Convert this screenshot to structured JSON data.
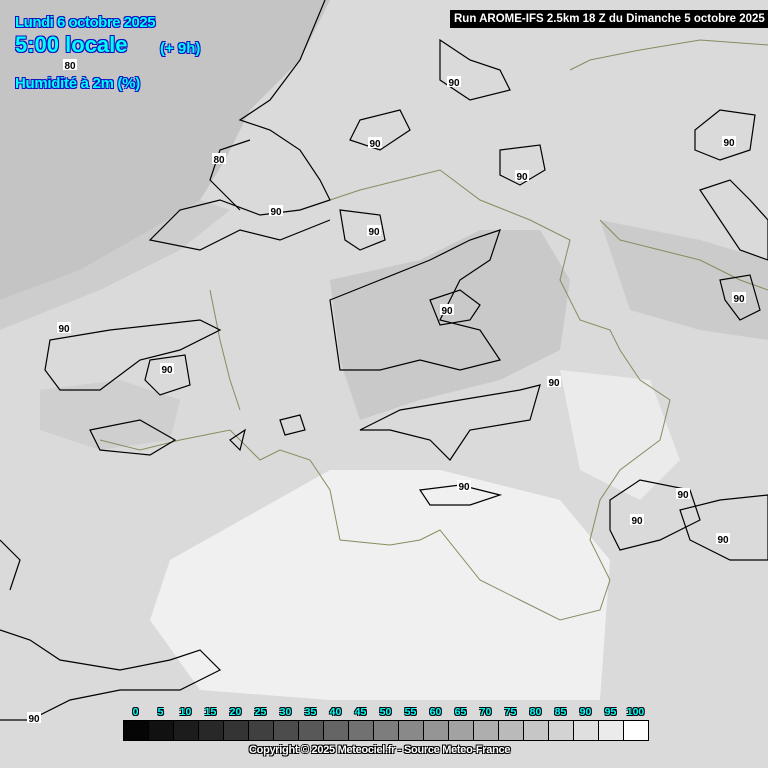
{
  "header": {
    "date": "Lundi 6 octobre 2025",
    "time": "5:00 locale",
    "offset": "(+ 9h)",
    "parameter": "Humidité à 2m (%)"
  },
  "run_info": "Run AROME-IFS 2.5km 18 Z du Dimanche 5 octobre 2025",
  "legend": {
    "ticks": [
      "0",
      "5",
      "10",
      "15",
      "20",
      "25",
      "30",
      "35",
      "40",
      "45",
      "50",
      "55",
      "60",
      "65",
      "70",
      "75",
      "80",
      "85",
      "90",
      "95",
      "100"
    ],
    "colors": [
      "#050505",
      "#111111",
      "#1c1c1c",
      "#282828",
      "#343434",
      "#404040",
      "#4c4c4c",
      "#585858",
      "#656565",
      "#717171",
      "#7d7d7d",
      "#898989",
      "#959595",
      "#a2a2a2",
      "#aeaeae",
      "#bababa",
      "#c6c6c6",
      "#d3d3d3",
      "#dfdfdf",
      "#ebebeb",
      "#ffffff"
    ]
  },
  "contour_labels": [
    "80",
    "80",
    "90",
    "90",
    "90",
    "90",
    "90",
    "90",
    "90",
    "90",
    "90",
    "90",
    "90",
    "90",
    "90",
    "90",
    "90",
    "90"
  ],
  "copyright": "Copyright © 2025 Meteociel.fr - Source Meteo-France",
  "colors": {
    "header_text": "#00ffff",
    "header_outline": "#1010c0",
    "border_line": "#8a8a60",
    "contour": "#000000"
  }
}
